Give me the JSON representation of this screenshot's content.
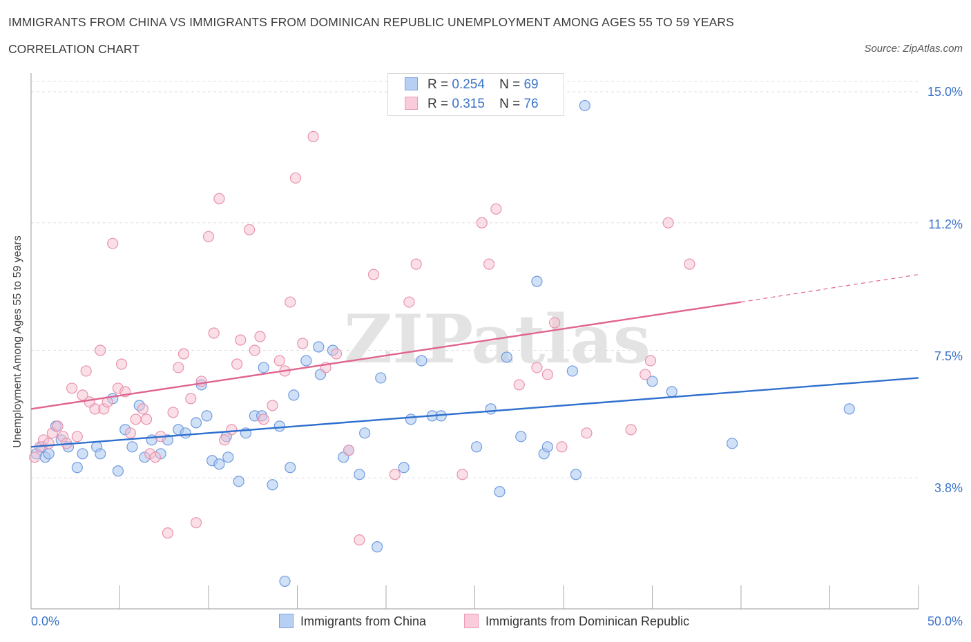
{
  "title": "IMMIGRANTS FROM CHINA VS IMMIGRANTS FROM DOMINICAN REPUBLIC UNEMPLOYMENT AMONG AGES 55 TO 59 YEARS",
  "subtitle": "CORRELATION CHART",
  "source": "Source: ZipAtlas.com",
  "watermark": "ZIPatlas",
  "colors": {
    "china_fill": "#a9c6ef",
    "china_stroke": "#6f9be0",
    "china_line": "#2f6fce",
    "dr_fill": "#f6bfd0",
    "dr_stroke": "#e892ad",
    "dr_line": "#e0648e",
    "tick_text": "#3b73c9",
    "grid": "#dddddd"
  },
  "legend": {
    "rows": [
      {
        "r_label": "R =",
        "r_value": "0.254",
        "n_label": "N =",
        "n_value": "69"
      },
      {
        "r_label": "R =",
        "r_value": "0.315",
        "n_label": "N =",
        "n_value": "76"
      }
    ]
  },
  "chart_data": {
    "type": "scatter",
    "title": "IMMIGRANTS FROM CHINA VS IMMIGRANTS FROM DOMINICAN REPUBLIC UNEMPLOYMENT AMONG AGES 55 TO 59 YEARS",
    "subtitle": "CORRELATION CHART",
    "xlabel": "",
    "ylabel": "Unemployment Among Ages 55 to 59 years",
    "xlim": [
      0,
      50
    ],
    "ylim": [
      0,
      15.3
    ],
    "x_tick_labels": [
      "0.0%",
      "50.0%"
    ],
    "y_ticks": [
      3.8,
      7.5,
      11.2,
      15.0
    ],
    "y_tick_labels": [
      "3.8%",
      "7.5%",
      "11.2%",
      "15.0%"
    ],
    "grid": true,
    "legend_position": "top-center",
    "series": [
      {
        "name": "Immigrants from China",
        "r": 0.254,
        "n": 69,
        "trend": {
          "x": [
            0,
            50
          ],
          "y": [
            4.7,
            6.7
          ]
        },
        "points": [
          [
            0.3,
            4.5
          ],
          [
            0.6,
            4.7
          ],
          [
            0.8,
            4.4
          ],
          [
            1.0,
            4.5
          ],
          [
            1.4,
            5.3
          ],
          [
            1.7,
            4.9
          ],
          [
            2.1,
            4.7
          ],
          [
            2.6,
            4.1
          ],
          [
            2.9,
            4.5
          ],
          [
            3.7,
            4.7
          ],
          [
            3.9,
            4.5
          ],
          [
            4.6,
            6.1
          ],
          [
            4.9,
            4.0
          ],
          [
            5.3,
            5.2
          ],
          [
            5.7,
            4.7
          ],
          [
            6.1,
            5.9
          ],
          [
            6.4,
            4.4
          ],
          [
            6.8,
            4.9
          ],
          [
            7.3,
            4.5
          ],
          [
            7.7,
            4.9
          ],
          [
            8.3,
            5.2
          ],
          [
            8.7,
            5.1
          ],
          [
            9.3,
            5.4
          ],
          [
            9.6,
            6.5
          ],
          [
            9.9,
            5.6
          ],
          [
            10.2,
            4.3
          ],
          [
            10.6,
            4.2
          ],
          [
            11.0,
            5.0
          ],
          [
            11.1,
            4.4
          ],
          [
            11.7,
            3.7
          ],
          [
            12.1,
            5.1
          ],
          [
            12.6,
            5.6
          ],
          [
            13.0,
            5.6
          ],
          [
            13.1,
            7.0
          ],
          [
            13.6,
            3.6
          ],
          [
            14.0,
            5.3
          ],
          [
            14.6,
            4.1
          ],
          [
            14.8,
            6.2
          ],
          [
            15.5,
            7.2
          ],
          [
            16.2,
            7.6
          ],
          [
            16.3,
            6.8
          ],
          [
            17.0,
            7.5
          ],
          [
            17.6,
            4.4
          ],
          [
            17.9,
            4.6
          ],
          [
            18.5,
            3.9
          ],
          [
            18.8,
            5.1
          ],
          [
            19.5,
            1.8
          ],
          [
            19.7,
            6.7
          ],
          [
            21.0,
            4.1
          ],
          [
            21.4,
            5.5
          ],
          [
            22.0,
            7.2
          ],
          [
            22.6,
            5.6
          ],
          [
            23.1,
            5.6
          ],
          [
            25.1,
            4.7
          ],
          [
            25.9,
            5.8
          ],
          [
            26.4,
            3.4
          ],
          [
            26.8,
            7.3
          ],
          [
            27.6,
            5.0
          ],
          [
            28.5,
            9.5
          ],
          [
            28.9,
            4.5
          ],
          [
            29.1,
            4.7
          ],
          [
            30.5,
            6.9
          ],
          [
            30.7,
            3.9
          ],
          [
            31.2,
            14.6
          ],
          [
            35.0,
            6.6
          ],
          [
            36.1,
            6.3
          ],
          [
            39.5,
            4.8
          ],
          [
            46.1,
            5.8
          ],
          [
            14.3,
            0.8
          ]
        ]
      },
      {
        "name": "Immigrants from Dominican Republic",
        "r": 0.315,
        "n": 76,
        "trend": {
          "x": [
            0,
            40
          ],
          "y": [
            5.8,
            8.9
          ]
        },
        "trend_dashed": {
          "x": [
            40,
            50
          ],
          "y": [
            8.9,
            9.7
          ]
        },
        "points": [
          [
            0.2,
            4.4
          ],
          [
            0.5,
            4.7
          ],
          [
            0.7,
            4.9
          ],
          [
            1.0,
            4.8
          ],
          [
            1.2,
            5.1
          ],
          [
            1.5,
            5.3
          ],
          [
            1.8,
            5.0
          ],
          [
            2.0,
            4.8
          ],
          [
            2.3,
            6.4
          ],
          [
            2.6,
            5.0
          ],
          [
            2.9,
            6.2
          ],
          [
            3.1,
            6.9
          ],
          [
            3.3,
            6.0
          ],
          [
            3.6,
            5.8
          ],
          [
            3.9,
            7.5
          ],
          [
            4.1,
            5.8
          ],
          [
            4.3,
            6.0
          ],
          [
            4.6,
            10.6
          ],
          [
            4.9,
            6.4
          ],
          [
            5.1,
            7.1
          ],
          [
            5.3,
            6.3
          ],
          [
            5.6,
            5.1
          ],
          [
            5.9,
            5.5
          ],
          [
            6.3,
            5.8
          ],
          [
            6.5,
            5.5
          ],
          [
            6.7,
            4.5
          ],
          [
            7.0,
            4.4
          ],
          [
            7.3,
            5.0
          ],
          [
            7.7,
            2.2
          ],
          [
            8.0,
            5.7
          ],
          [
            8.3,
            7.0
          ],
          [
            8.6,
            7.4
          ],
          [
            9.0,
            6.1
          ],
          [
            9.3,
            2.5
          ],
          [
            9.6,
            6.6
          ],
          [
            10.0,
            10.8
          ],
          [
            10.3,
            8.0
          ],
          [
            10.6,
            11.9
          ],
          [
            10.9,
            4.9
          ],
          [
            11.3,
            5.2
          ],
          [
            11.6,
            7.1
          ],
          [
            11.8,
            7.8
          ],
          [
            12.3,
            11.0
          ],
          [
            12.6,
            7.5
          ],
          [
            12.9,
            7.9
          ],
          [
            13.1,
            5.5
          ],
          [
            13.6,
            5.9
          ],
          [
            14.0,
            7.2
          ],
          [
            14.3,
            6.9
          ],
          [
            14.6,
            8.9
          ],
          [
            14.9,
            12.5
          ],
          [
            15.3,
            7.7
          ],
          [
            15.9,
            13.7
          ],
          [
            16.6,
            7.0
          ],
          [
            17.2,
            7.4
          ],
          [
            17.9,
            4.6
          ],
          [
            18.5,
            2.0
          ],
          [
            19.3,
            9.7
          ],
          [
            20.5,
            3.9
          ],
          [
            21.3,
            8.9
          ],
          [
            21.7,
            10.0
          ],
          [
            24.3,
            3.9
          ],
          [
            25.4,
            11.2
          ],
          [
            25.8,
            10.0
          ],
          [
            26.2,
            11.6
          ],
          [
            27.5,
            6.5
          ],
          [
            28.5,
            7.0
          ],
          [
            29.1,
            6.8
          ],
          [
            29.5,
            8.3
          ],
          [
            29.9,
            4.7
          ],
          [
            31.3,
            5.1
          ],
          [
            33.8,
            5.2
          ],
          [
            34.6,
            6.8
          ],
          [
            34.9,
            7.2
          ],
          [
            35.9,
            11.2
          ],
          [
            37.1,
            10.0
          ]
        ]
      }
    ]
  },
  "axis": {
    "x_min_label": "0.0%",
    "x_max_label": "50.0%",
    "y_labels": [
      "3.8%",
      "7.5%",
      "11.2%",
      "15.0%"
    ],
    "y_label": "Unemployment Among Ages 55 to 59 years"
  },
  "bottom_legend": {
    "china_label": "Immigrants from China",
    "dr_label": "Immigrants from Dominican Republic"
  }
}
